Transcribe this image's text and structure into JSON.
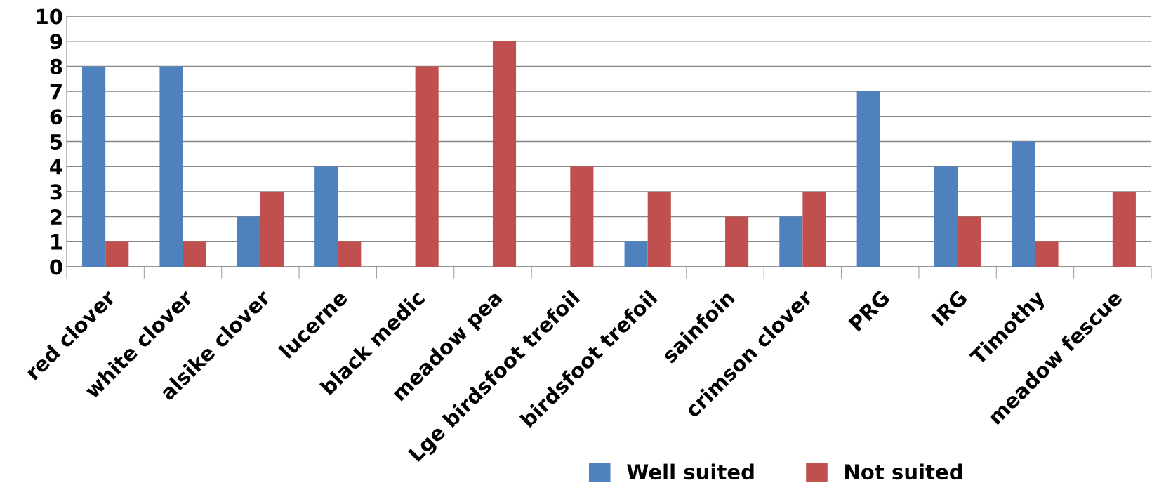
{
  "chart_data": {
    "type": "bar",
    "categories": [
      "red clover",
      "white clover",
      "alsike clover",
      "lucerne",
      "black medic",
      "meadow pea",
      "Lge birdsfoot trefoil",
      "birdsfoot trefoil",
      "sainfoin",
      "crimson clover",
      "PRG",
      "IRG",
      "Timothy",
      "meadow fescue"
    ],
    "series": [
      {
        "name": "Well suited",
        "color": "#4f81bd",
        "values": [
          8,
          8,
          2,
          4,
          0,
          0,
          0,
          1,
          0,
          2,
          7,
          4,
          5,
          0
        ]
      },
      {
        "name": "Not suited",
        "color": "#c0504d",
        "values": [
          1,
          1,
          3,
          1,
          8,
          9,
          4,
          3,
          2,
          3,
          0,
          2,
          1,
          3
        ]
      }
    ],
    "ylim": [
      0,
      10
    ],
    "yticks": [
      0,
      1,
      2,
      3,
      4,
      5,
      6,
      7,
      8,
      9,
      10
    ],
    "grid": "y",
    "legend": "bottom"
  }
}
